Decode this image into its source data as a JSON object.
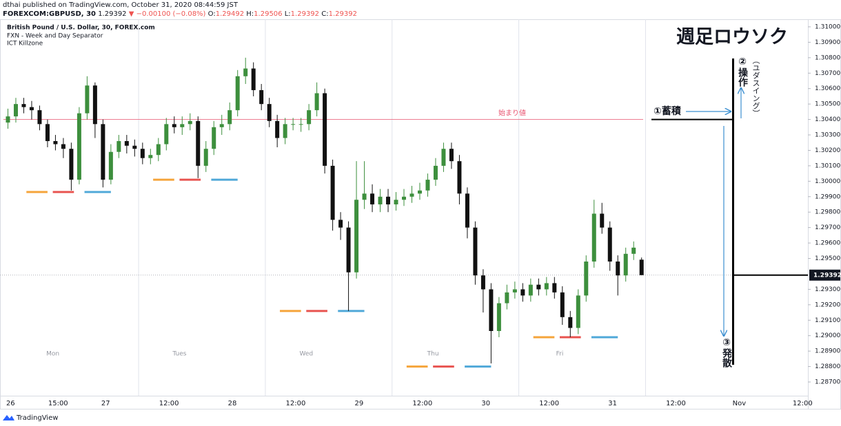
{
  "header": {
    "publisher": "dthai published on TradingView.com, October 31, 2020 08:44:59 JST",
    "quote": [
      "FOREXCOM:GBPUSD, 30",
      "1.29392",
      "▼ −0.00100 (−0.08%)",
      "O:",
      "1.29492",
      "H:",
      "1.29506",
      "L:",
      "1.29392",
      "C:",
      "1.29392"
    ]
  },
  "legend": [
    "British Pound / U.S. Dollar, 30, FOREX.com",
    "FXN - Week and Day Separator",
    "ICT Killzone"
  ],
  "footer": "TradingView",
  "chart_data": {
    "type": "candlestick",
    "up_color": "#3d8f3d",
    "down_color": "#111111",
    "grid": false,
    "x": [
      2,
      5,
      8,
      11,
      14,
      17,
      20,
      23,
      26,
      29,
      32,
      35,
      38,
      41,
      44,
      47,
      50,
      53,
      56,
      59,
      62,
      65,
      68,
      71,
      74,
      77,
      80,
      83,
      86,
      89,
      92,
      95,
      98,
      101,
      104,
      107,
      110,
      113,
      116,
      119,
      122,
      125,
      128,
      131,
      134,
      137,
      140,
      143,
      146,
      149,
      152,
      155,
      158,
      161,
      164,
      167,
      170,
      173,
      176,
      179,
      182,
      185,
      188,
      191,
      194,
      197,
      200,
      203,
      206,
      209,
      212,
      215,
      218,
      221,
      224,
      227,
      230,
      233,
      236,
      239,
      242
    ],
    "open": [
      1.3038,
      1.3042,
      1.305,
      1.3048,
      1.3046,
      1.3037,
      1.3026,
      1.3024,
      1.3021,
      1.3001,
      1.3044,
      1.3062,
      1.3037,
      1.3001,
      1.3019,
      1.3026,
      1.3023,
      1.3021,
      1.3015,
      1.3017,
      1.3024,
      1.3037,
      1.3035,
      1.3037,
      1.3039,
      1.301,
      1.3021,
      1.3035,
      1.3037,
      1.3046,
      1.3068,
      1.3073,
      1.3059,
      1.305,
      1.3039,
      1.3028,
      1.3037,
      1.3037,
      1.3037,
      1.3046,
      1.3057,
      1.301,
      1.2975,
      1.297,
      1.2941,
      1.2988,
      1.2992,
      1.2985,
      1.299,
      1.2985,
      1.2988,
      1.299,
      1.2992,
      1.2994,
      1.3001,
      1.301,
      1.3021,
      1.3013,
      1.2992,
      1.297,
      1.2939,
      1.293,
      1.2903,
      1.2921,
      1.2928,
      1.293,
      1.2926,
      1.2933,
      1.293,
      1.2934,
      1.2928,
      1.2912,
      1.2905,
      1.2926,
      1.2948,
      1.2979,
      1.297,
      1.2948,
      1.2939,
      1.2953,
      1.29492
    ],
    "high": [
      1.3047,
      1.3054,
      1.3054,
      1.3052,
      1.3049,
      1.304,
      1.303,
      1.3028,
      1.3025,
      1.3048,
      1.3068,
      1.3064,
      1.304,
      1.3024,
      1.303,
      1.303,
      1.3027,
      1.3025,
      1.3021,
      1.3028,
      1.3041,
      1.3042,
      1.3042,
      1.3044,
      1.3042,
      1.3026,
      1.3039,
      1.3043,
      1.3051,
      1.3072,
      1.308,
      1.3077,
      1.3063,
      1.3054,
      1.3043,
      1.3041,
      1.3041,
      1.3041,
      1.305,
      1.3064,
      1.306,
      1.3014,
      1.298,
      1.2974,
      1.3013,
      1.3013,
      1.2998,
      1.2995,
      1.2995,
      1.2993,
      1.2995,
      1.2997,
      1.2999,
      1.3005,
      1.3015,
      1.3025,
      1.3025,
      1.3017,
      1.2996,
      1.2974,
      1.2943,
      1.2934,
      1.2925,
      1.2933,
      1.2935,
      1.2934,
      1.2937,
      1.2937,
      1.2938,
      1.2938,
      1.2932,
      1.2916,
      1.293,
      1.2952,
      1.2988,
      1.2986,
      1.2974,
      1.2952,
      1.2957,
      1.2961,
      1.29506
    ],
    "low": [
      1.3034,
      1.3038,
      1.3044,
      1.304,
      1.3033,
      1.3022,
      1.302,
      1.3015,
      1.2994,
      1.2998,
      1.304,
      1.3028,
      1.2996,
      1.2998,
      1.3015,
      1.3018,
      1.3016,
      1.3011,
      1.3011,
      1.3013,
      1.302,
      1.3031,
      1.303,
      1.3033,
      1.3002,
      1.3006,
      1.3017,
      1.303,
      1.3033,
      1.3042,
      1.3063,
      1.3055,
      1.3046,
      1.3035,
      1.3022,
      1.3024,
      1.3033,
      1.3032,
      1.3033,
      1.3042,
      1.3005,
      1.2968,
      1.2962,
      1.2916,
      1.2937,
      1.2982,
      1.298,
      1.298,
      1.298,
      1.2981,
      1.2984,
      1.2986,
      1.2988,
      1.299,
      1.2997,
      1.3006,
      1.3008,
      1.2985,
      1.2963,
      1.2933,
      1.2915,
      1.2882,
      1.2899,
      1.2917,
      1.2924,
      1.2922,
      1.2922,
      1.2926,
      1.2926,
      1.2924,
      1.2907,
      1.2899,
      1.2901,
      1.2922,
      1.2944,
      1.2966,
      1.2942,
      1.2926,
      1.2935,
      1.2949,
      1.29392
    ],
    "close": [
      1.3042,
      1.305,
      1.3048,
      1.3046,
      1.3037,
      1.3026,
      1.3024,
      1.3021,
      1.3001,
      1.3044,
      1.3062,
      1.3037,
      1.3001,
      1.3019,
      1.3026,
      1.3023,
      1.3021,
      1.3015,
      1.3017,
      1.3024,
      1.3037,
      1.3035,
      1.3037,
      1.3039,
      1.301,
      1.3021,
      1.3035,
      1.3037,
      1.3046,
      1.3068,
      1.3073,
      1.3059,
      1.305,
      1.3039,
      1.3028,
      1.3037,
      1.3037,
      1.3037,
      1.3046,
      1.3057,
      1.301,
      1.2975,
      1.297,
      1.2941,
      1.2988,
      1.2992,
      1.2985,
      1.299,
      1.2985,
      1.2988,
      1.299,
      1.2992,
      1.2994,
      1.3001,
      1.301,
      1.3021,
      1.3013,
      1.2992,
      1.297,
      1.2939,
      1.293,
      1.2903,
      1.2921,
      1.2928,
      1.293,
      1.2926,
      1.2933,
      1.293,
      1.2934,
      1.2928,
      1.2912,
      1.2905,
      1.2926,
      1.2948,
      1.2979,
      1.297,
      1.2948,
      1.2939,
      1.2953,
      1.2957,
      1.29392
    ],
    "xlim": [
      -1,
      305
    ],
    "xticks": [
      {
        "value": 3,
        "label": "26"
      },
      {
        "value": 21,
        "label": "15:00"
      },
      {
        "value": 39,
        "label": "27"
      },
      {
        "value": 63,
        "label": "12:00"
      },
      {
        "value": 87,
        "label": "28"
      },
      {
        "value": 111,
        "label": "12:00"
      },
      {
        "value": 135,
        "label": "29"
      },
      {
        "value": 159,
        "label": "12:00"
      },
      {
        "value": 183,
        "label": "30"
      },
      {
        "value": 207,
        "label": "12:00"
      },
      {
        "value": 231,
        "label": "31"
      },
      {
        "value": 255,
        "label": "12:00"
      },
      {
        "value": 279,
        "label": "Nov"
      },
      {
        "value": 303,
        "label": "12:00"
      }
    ],
    "ylim": [
      1.28611,
      1.3104
    ],
    "yticks": [
      {
        "value": 1.31,
        "label": "1.31000"
      },
      {
        "value": 1.309,
        "label": "1.30900"
      },
      {
        "value": 1.308,
        "label": "1.30800"
      },
      {
        "value": 1.307,
        "label": "1.30700"
      },
      {
        "value": 1.306,
        "label": "1.30600"
      },
      {
        "value": 1.305,
        "label": "1.30500"
      },
      {
        "value": 1.304,
        "label": "1.30400"
      },
      {
        "value": 1.303,
        "label": "1.30300"
      },
      {
        "value": 1.302,
        "label": "1.30200"
      },
      {
        "value": 1.301,
        "label": "1.30100"
      },
      {
        "value": 1.3,
        "label": "1.30000"
      },
      {
        "value": 1.299,
        "label": "1.29900"
      },
      {
        "value": 1.298,
        "label": "1.29800"
      },
      {
        "value": 1.297,
        "label": "1.29700"
      },
      {
        "value": 1.296,
        "label": "1.29600"
      },
      {
        "value": 1.295,
        "label": "1.29500"
      },
      {
        "value": 1.293,
        "label": "1.29300"
      },
      {
        "value": 1.292,
        "label": "1.29200"
      },
      {
        "value": 1.291,
        "label": "1.29100"
      },
      {
        "value": 1.29,
        "label": "1.29000"
      },
      {
        "value": 1.289,
        "label": "1.28900"
      },
      {
        "value": 1.288,
        "label": "1.28800"
      },
      {
        "value": 1.287,
        "label": "1.28700"
      }
    ],
    "separators": [
      51.5,
      99.5,
      147.5,
      195.5,
      243.5
    ],
    "session_labels": [
      {
        "value": 19,
        "label": "Mon"
      },
      {
        "value": 67,
        "label": "Tues"
      },
      {
        "value": 115,
        "label": "Wed"
      },
      {
        "value": 163,
        "label": "Thu"
      },
      {
        "value": 211,
        "label": "Fri"
      }
    ],
    "killzones": [
      {
        "start": 9,
        "end": 17,
        "price": 1.2993,
        "color": "#f5a43a"
      },
      {
        "start": 19,
        "end": 27,
        "price": 1.2993,
        "color": "#e8534f"
      },
      {
        "start": 31,
        "end": 41,
        "price": 1.2993,
        "color": "#4fa8d8"
      },
      {
        "start": 57,
        "end": 65,
        "price": 1.3001,
        "color": "#f5a43a"
      },
      {
        "start": 67,
        "end": 75,
        "price": 1.3001,
        "color": "#e8534f"
      },
      {
        "start": 79,
        "end": 89,
        "price": 1.3001,
        "color": "#4fa8d8"
      },
      {
        "start": 105,
        "end": 113,
        "price": 1.2916,
        "color": "#f5a43a"
      },
      {
        "start": 115,
        "end": 123,
        "price": 1.2916,
        "color": "#e8534f"
      },
      {
        "start": 127,
        "end": 137,
        "price": 1.2916,
        "color": "#4fa8d8"
      },
      {
        "start": 153,
        "end": 161,
        "price": 1.288,
        "color": "#f5a43a"
      },
      {
        "start": 163,
        "end": 171,
        "price": 1.288,
        "color": "#e8534f"
      },
      {
        "start": 175,
        "end": 185,
        "price": 1.288,
        "color": "#4fa8d8"
      },
      {
        "start": 201,
        "end": 209,
        "price": 1.2899,
        "color": "#f5a43a"
      },
      {
        "start": 211,
        "end": 219,
        "price": 1.2899,
        "color": "#e8534f"
      },
      {
        "start": 223,
        "end": 233,
        "price": 1.2899,
        "color": "#4fa8d8"
      }
    ],
    "open_price": 1.304,
    "open_price_color": "#e8536f",
    "last_price": 1.29392,
    "annotations": {
      "open_label": "始まり値",
      "title": "週足ロウソク",
      "step1": "①蓄積",
      "step2": "②操作",
      "step2_note": "（ユダスイング）",
      "step3": "③発散"
    }
  }
}
